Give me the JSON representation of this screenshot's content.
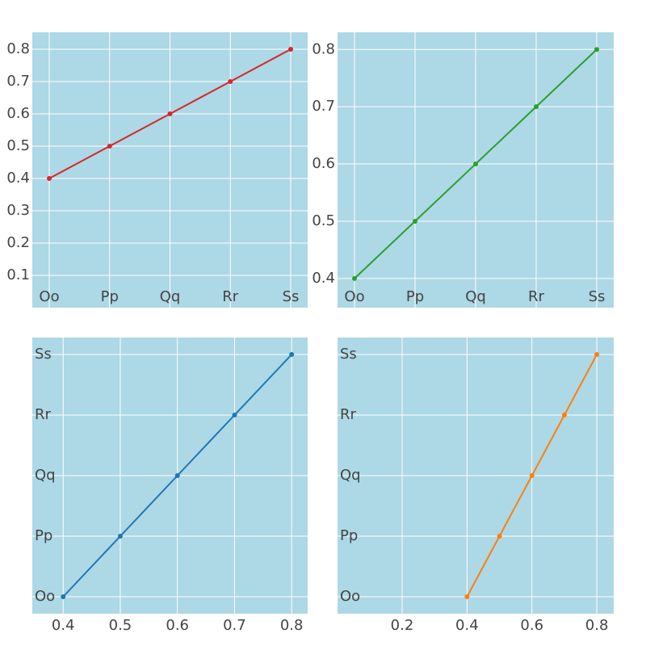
{
  "chart_data": [
    {
      "type": "line",
      "orientation": "v",
      "categories": [
        "Oo",
        "Pp",
        "Qq",
        "Rr",
        "Ss"
      ],
      "values": [
        0.4,
        0.5,
        0.6,
        0.7,
        0.8
      ],
      "color": "#d62728",
      "ylim": [
        0,
        0.8525
      ],
      "yticks": [
        0.1,
        0.2,
        0.3,
        0.4,
        0.5,
        0.6,
        0.7,
        0.8
      ],
      "grid": true
    },
    {
      "type": "line",
      "orientation": "v",
      "categories": [
        "Oo",
        "Pp",
        "Qq",
        "Rr",
        "Ss"
      ],
      "values": [
        0.4,
        0.5,
        0.6,
        0.7,
        0.8
      ],
      "color": "#2ca02c",
      "ylim": [
        0.349,
        0.83
      ],
      "yticks": [
        0.4,
        0.5,
        0.6,
        0.7,
        0.8
      ],
      "grid": true
    },
    {
      "type": "line",
      "orientation": "h",
      "categories": [
        "Oo",
        "Pp",
        "Qq",
        "Rr",
        "Ss"
      ],
      "values": [
        0.4,
        0.5,
        0.6,
        0.7,
        0.8
      ],
      "color": "#1f77b4",
      "xlim": [
        0.346,
        0.828
      ],
      "xticks": [
        0.4,
        0.5,
        0.6,
        0.7,
        0.8
      ],
      "grid": true
    },
    {
      "type": "line",
      "orientation": "h",
      "categories": [
        "Oo",
        "Pp",
        "Qq",
        "Rr",
        "Ss"
      ],
      "values": [
        0.4,
        0.5,
        0.6,
        0.7,
        0.8
      ],
      "color": "#ff7f0e",
      "xlim": [
        0.001,
        0.852
      ],
      "xticks": [
        0.2,
        0.4,
        0.6,
        0.8
      ],
      "grid": true
    }
  ]
}
